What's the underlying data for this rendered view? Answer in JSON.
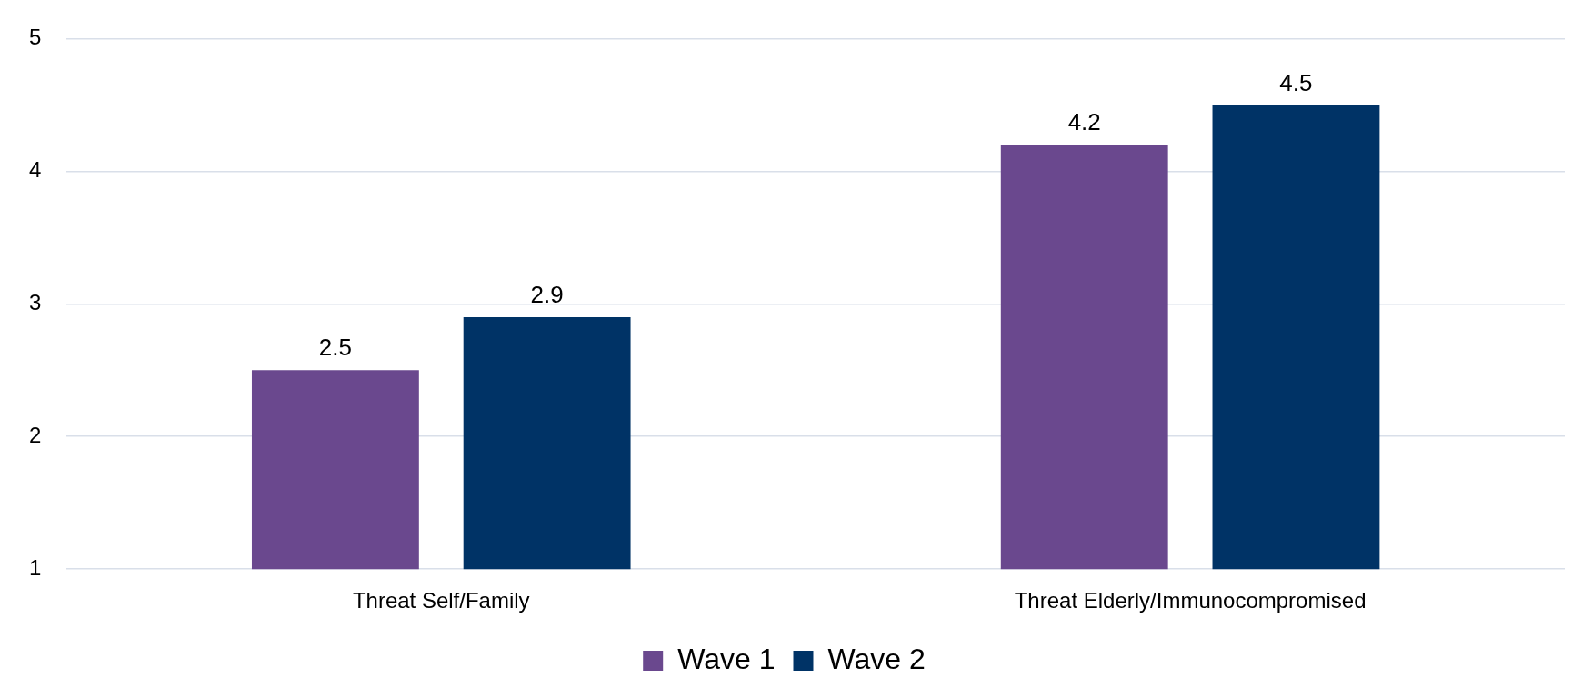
{
  "chart_data": {
    "type": "bar",
    "categories": [
      "Threat Self/Family",
      "Threat Elderly/Immunocompromised"
    ],
    "series": [
      {
        "name": "Wave 1",
        "color": "#6a488e",
        "values": [
          2.5,
          4.2
        ]
      },
      {
        "name": "Wave 2",
        "color": "#003366",
        "values": [
          2.9,
          4.5
        ]
      }
    ],
    "ylim": [
      1,
      5
    ],
    "yticks": [
      1,
      2,
      3,
      4,
      5
    ],
    "grid": "y",
    "legend": "bottom",
    "data_labels": true
  }
}
